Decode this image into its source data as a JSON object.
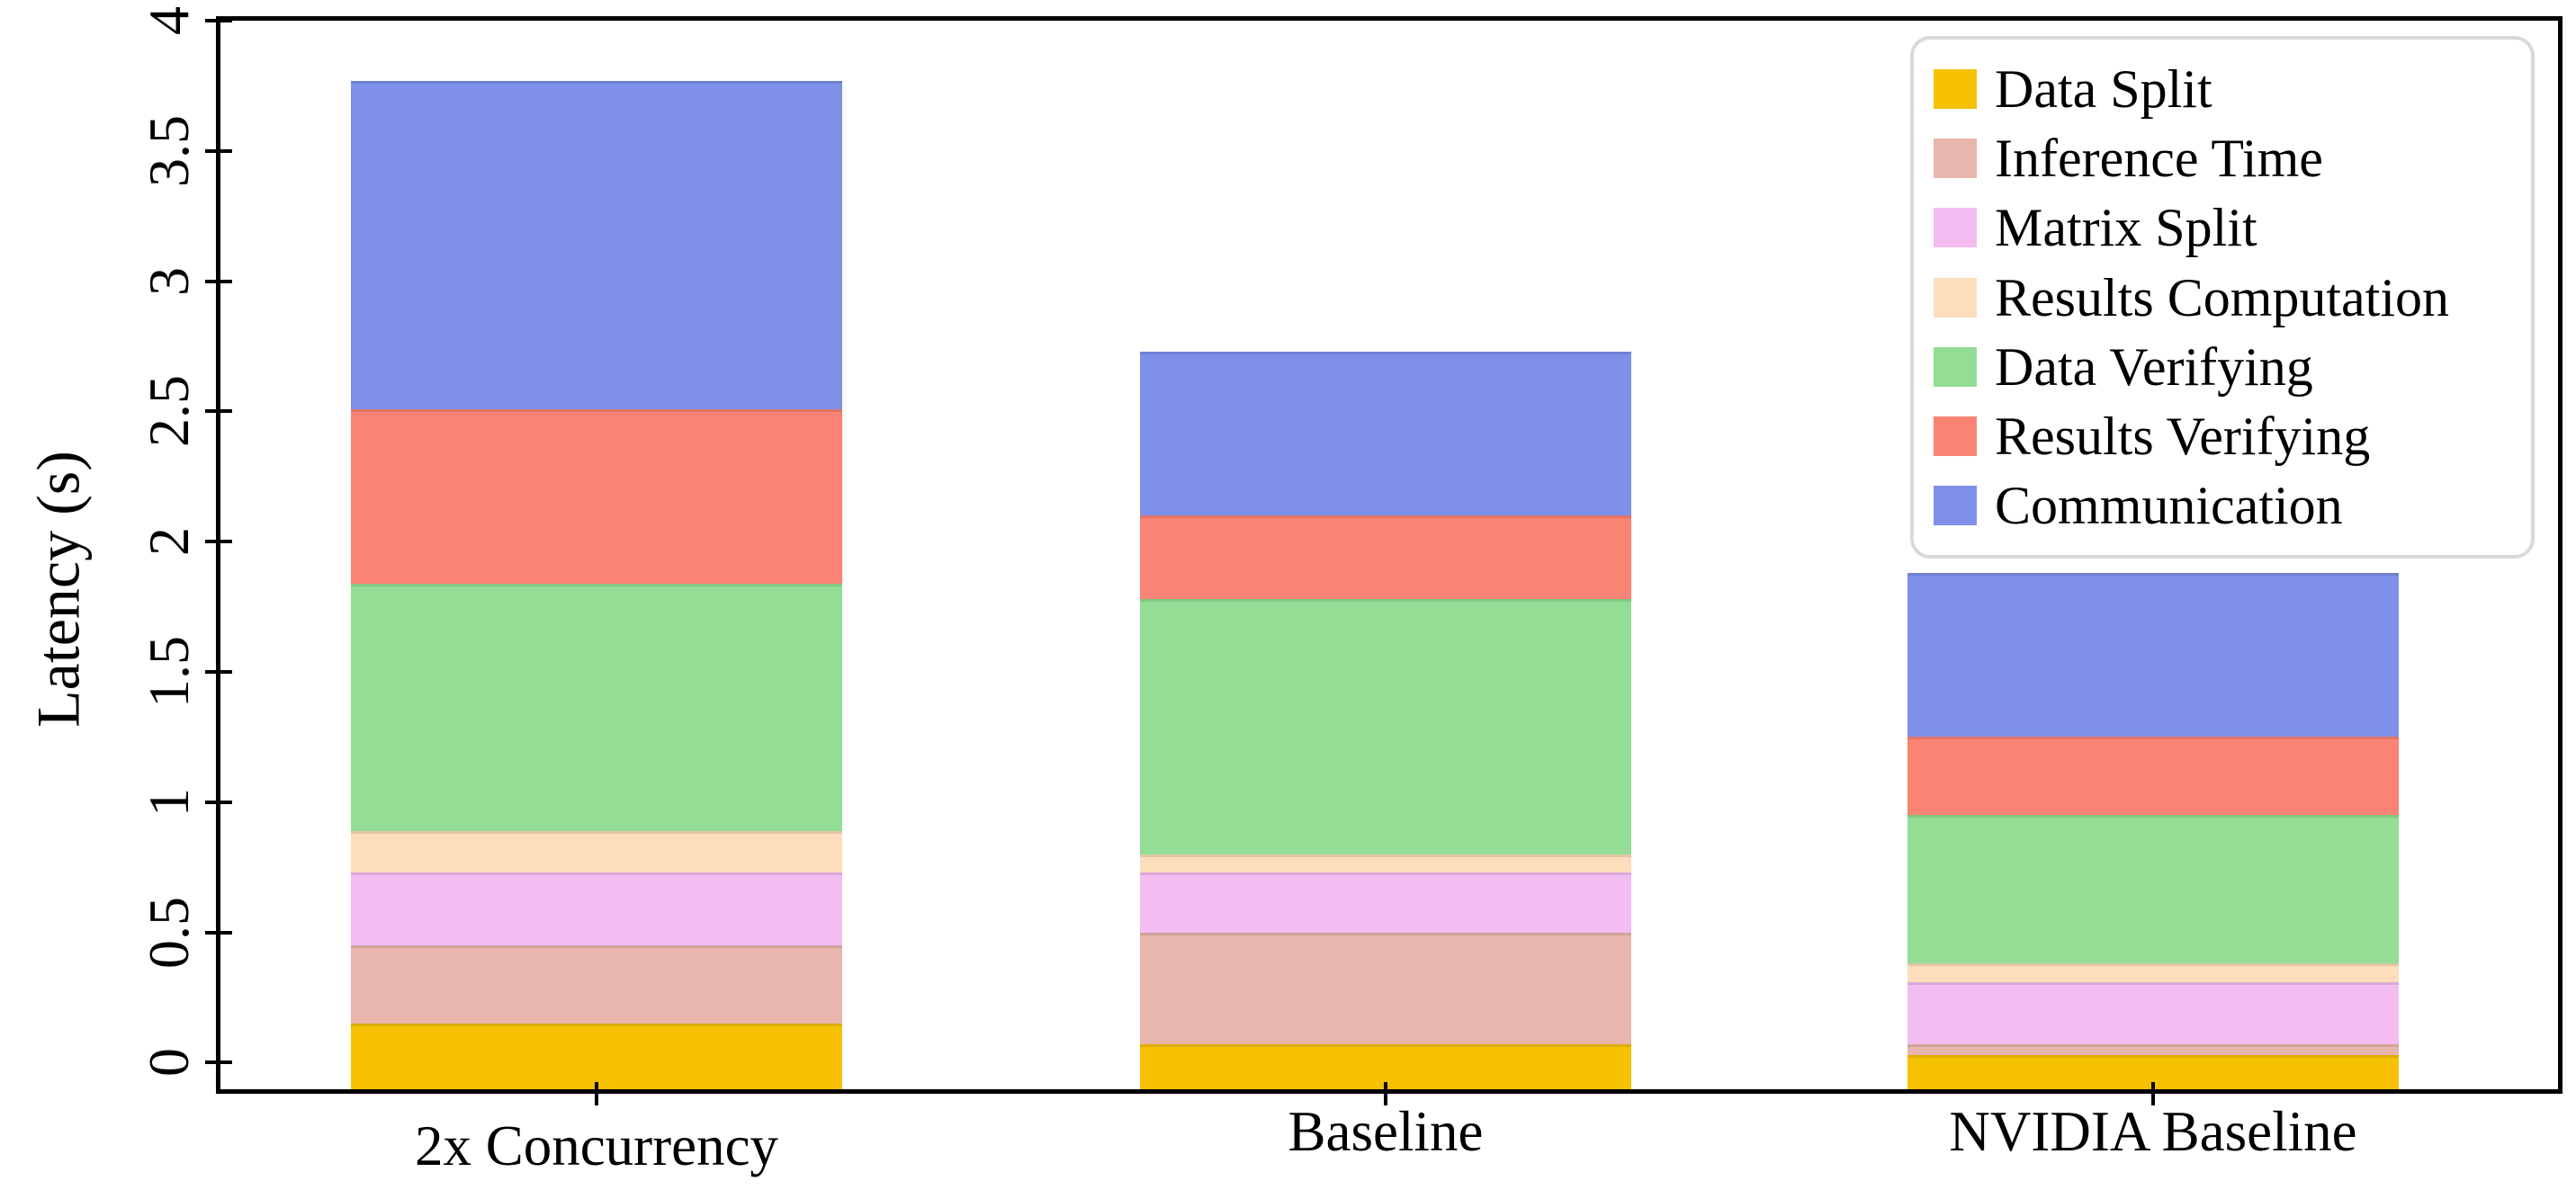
{
  "figure": {
    "background": "#ffffff",
    "axis_color": "#000000",
    "legend_border_color": "#d9d9d9"
  },
  "chart_data": {
    "type": "bar",
    "subtype": "stacked-vertical",
    "title": "",
    "xlabel": "",
    "ylabel": "Latency (s)",
    "categories": [
      "2x Concurrency",
      "Baseline",
      "NVIDIA Baseline"
    ],
    "series": [
      {
        "name": "Data Split",
        "color": "#F6C103",
        "values": [
          0.15,
          0.07,
          0.03
        ]
      },
      {
        "name": "Inference Time",
        "color": "#E8B6AC",
        "values": [
          0.3,
          0.43,
          0.04
        ]
      },
      {
        "name": "Matrix Split",
        "color": "#F3BDF1",
        "values": [
          0.28,
          0.23,
          0.24
        ]
      },
      {
        "name": "Results Computation",
        "color": "#FCDDBC",
        "values": [
          0.16,
          0.07,
          0.07
        ]
      },
      {
        "name": "Data Verifying",
        "color": "#94DD94",
        "values": [
          0.95,
          0.98,
          0.57
        ]
      },
      {
        "name": "Results Verifying",
        "color": "#FA8373",
        "values": [
          0.67,
          0.32,
          0.3
        ]
      },
      {
        "name": "Communication",
        "color": "#7E90EA",
        "values": [
          1.26,
          0.63,
          0.63
        ]
      }
    ],
    "stack_totals": [
      3.77,
      2.73,
      1.88
    ],
    "y_ticks": [
      "0",
      "0.5",
      "1",
      "1.5",
      "2",
      "2.5",
      "3",
      "3.5",
      "4"
    ],
    "ylim": [
      -0.102,
      4.0
    ],
    "grid": false,
    "legend_position": "upper right",
    "legend_entries": [
      "Data Split",
      "Inference Time",
      "Matrix Split",
      "Results Computation",
      "Data Verifying",
      "Results Verifying",
      "Communication"
    ]
  }
}
